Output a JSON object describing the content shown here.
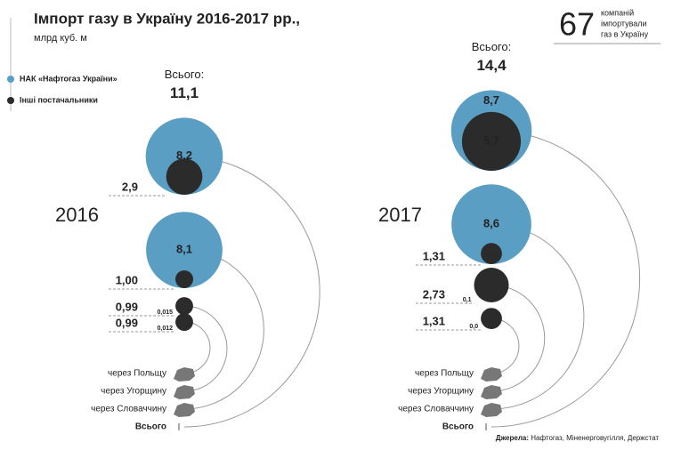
{
  "chart_data": {
    "type": "bubble",
    "title": "Імпорт газу в Україну 2016-2017 рр.,",
    "subtitle": "млрд куб. м",
    "series": [
      {
        "name": "НАК «Нафтогаз України»",
        "color": "#5b9ec4"
      },
      {
        "name": "Інші постачальники",
        "color": "#2b2b2b"
      }
    ],
    "companies": {
      "value": 67,
      "label": [
        "компаній",
        "імпортували",
        "газ в Україну"
      ]
    },
    "total_label": "Всього:",
    "route_labels": [
      "через Польщу",
      "через Угорщину",
      "через Словаччину",
      "Всього"
    ],
    "years": [
      {
        "year": "2016",
        "total": 11.1,
        "total_label": "11,1",
        "naftogaz": [
          8.2,
          8.1,
          0.015,
          0.012
        ],
        "naftogaz_labels": [
          "8,2",
          "8,1",
          "0,015",
          "0,012"
        ],
        "others": [
          2.9,
          1.0,
          0.99,
          0.99
        ],
        "others_labels": [
          "2,9",
          "1,00",
          "0,99",
          "0,99"
        ]
      },
      {
        "year": "2017",
        "total": 14.4,
        "total_label": "14,4",
        "naftogaz": [
          8.7,
          8.6,
          0.1,
          0.0
        ],
        "naftogaz_labels": [
          "8,7",
          "8,6",
          "0,1",
          "0,0"
        ],
        "others": [
          5.7,
          1.31,
          2.73,
          1.31
        ],
        "others_labels": [
          "5,7",
          "1,31",
          "2,73",
          "1,31"
        ]
      }
    ],
    "source_label": "Джерела:",
    "source": "Нафтогаз, Міненерговугілля, Держстат"
  }
}
